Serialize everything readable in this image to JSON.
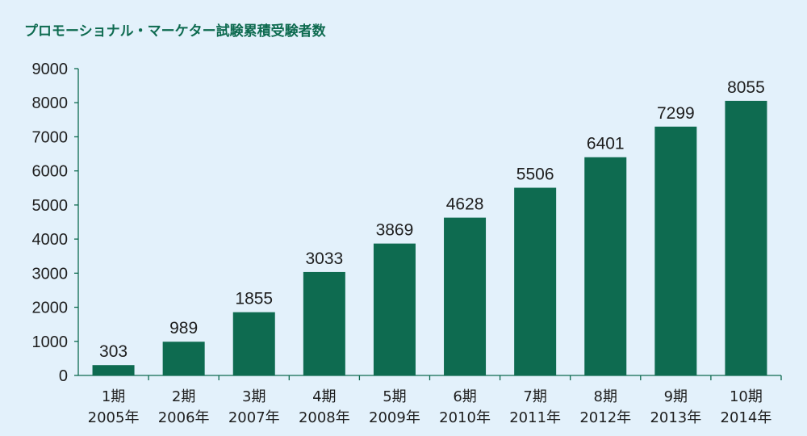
{
  "chart_data": {
    "type": "bar",
    "title": "プロモーショナル・マーケター試験累積受験者数",
    "xlabel": "",
    "ylabel": "",
    "categories": [
      [
        "1期",
        "2005年"
      ],
      [
        "2期",
        "2006年"
      ],
      [
        "3期",
        "2007年"
      ],
      [
        "4期",
        "2008年"
      ],
      [
        "5期",
        "2009年"
      ],
      [
        "6期",
        "2010年"
      ],
      [
        "7期",
        "2011年"
      ],
      [
        "8期",
        "2012年"
      ],
      [
        "9期",
        "2013年"
      ],
      [
        "10期",
        "2014年"
      ]
    ],
    "values": [
      303,
      989,
      1855,
      3033,
      3869,
      4628,
      5506,
      6401,
      7299,
      8055
    ],
    "ylim": [
      0,
      9000
    ],
    "yticks": [
      0,
      1000,
      2000,
      3000,
      4000,
      5000,
      6000,
      7000,
      8000,
      9000
    ],
    "data_labels": true,
    "grid": false,
    "colors": {
      "bar": "#0e6b50",
      "axis": "#0e6b50",
      "title": "#0e6b50",
      "text": "#1e1e1e",
      "background": "#e3f1fb"
    }
  }
}
